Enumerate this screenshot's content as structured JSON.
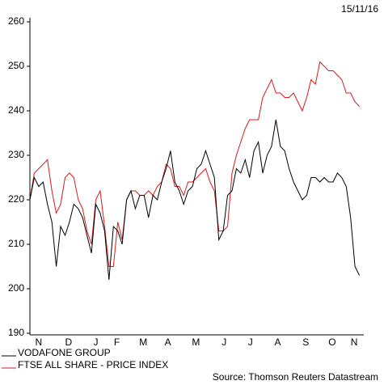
{
  "chart_data": {
    "type": "line",
    "date_label": "15/11/16",
    "source": "Source: Thomson Reuters Datastream",
    "x": [
      0,
      5,
      10,
      15,
      20,
      25,
      30,
      35,
      40,
      45,
      50,
      55,
      60,
      65,
      70,
      75,
      80,
      85,
      90,
      95,
      100,
      105,
      110,
      115,
      120,
      125,
      130,
      135,
      140,
      145,
      150,
      155,
      160,
      165,
      170,
      175,
      180,
      185,
      190,
      195,
      200,
      205,
      210,
      215,
      220,
      225,
      230,
      235,
      240,
      245,
      250,
      255,
      260,
      265,
      270,
      275,
      280,
      285,
      290,
      295,
      300,
      305,
      310,
      315,
      320,
      325,
      330,
      335,
      340,
      345,
      350,
      355,
      360,
      365,
      370,
      375
    ],
    "xlim": [
      0,
      380
    ],
    "xticks": [
      {
        "value": 10,
        "label": "N"
      },
      {
        "value": 44,
        "label": "D"
      },
      {
        "value": 75,
        "label": "J"
      },
      {
        "value": 99,
        "label": "F"
      },
      {
        "value": 129,
        "label": "M"
      },
      {
        "value": 157,
        "label": "A"
      },
      {
        "value": 189,
        "label": "M"
      },
      {
        "value": 221,
        "label": "J"
      },
      {
        "value": 251,
        "label": "J"
      },
      {
        "value": 282,
        "label": "A"
      },
      {
        "value": 314,
        "label": "S"
      },
      {
        "value": 344,
        "label": "O"
      },
      {
        "value": 369,
        "label": "N"
      }
    ],
    "ylim": [
      190,
      260
    ],
    "yticks": [
      190,
      200,
      210,
      220,
      230,
      240,
      250,
      260
    ],
    "grid": false,
    "series": [
      {
        "name": "VODAFONE GROUP",
        "color": "#000000",
        "values": [
          220,
          225,
          223,
          224,
          219,
          215,
          205,
          214,
          212,
          215,
          219,
          218,
          216,
          212,
          208,
          219,
          217,
          213,
          202,
          214,
          213,
          210,
          220,
          222,
          218,
          221,
          221,
          216,
          221,
          220,
          224,
          227,
          231,
          224,
          222,
          219,
          222,
          223,
          227,
          228,
          231,
          228,
          225,
          211,
          213,
          221,
          222,
          227,
          226,
          229,
          225,
          231,
          233,
          226,
          230,
          232,
          238,
          232,
          231,
          227,
          224,
          222,
          220,
          221,
          225,
          225,
          224,
          225,
          224,
          224,
          226,
          225,
          223,
          216,
          205,
          203
        ]
      },
      {
        "name": "FTSE ALL SHARE - PRICE INDEX",
        "color": "#d7191c",
        "values": [
          220,
          226,
          227,
          228,
          229,
          222,
          217,
          219,
          225,
          226,
          225,
          220,
          218,
          213,
          210,
          220,
          222,
          214,
          205,
          205,
          215,
          211,
          220,
          222,
          222,
          221,
          221,
          222,
          221,
          223,
          224,
          228,
          227,
          223,
          223,
          221,
          224,
          224,
          225,
          226,
          227,
          224,
          222,
          213,
          213,
          214,
          226,
          230,
          233,
          236,
          238,
          238,
          238,
          243,
          245,
          247,
          244,
          244,
          243,
          243,
          244,
          242,
          240,
          243,
          247,
          246,
          251,
          250,
          249,
          249,
          248,
          247,
          244,
          244,
          242,
          241
        ]
      }
    ]
  }
}
